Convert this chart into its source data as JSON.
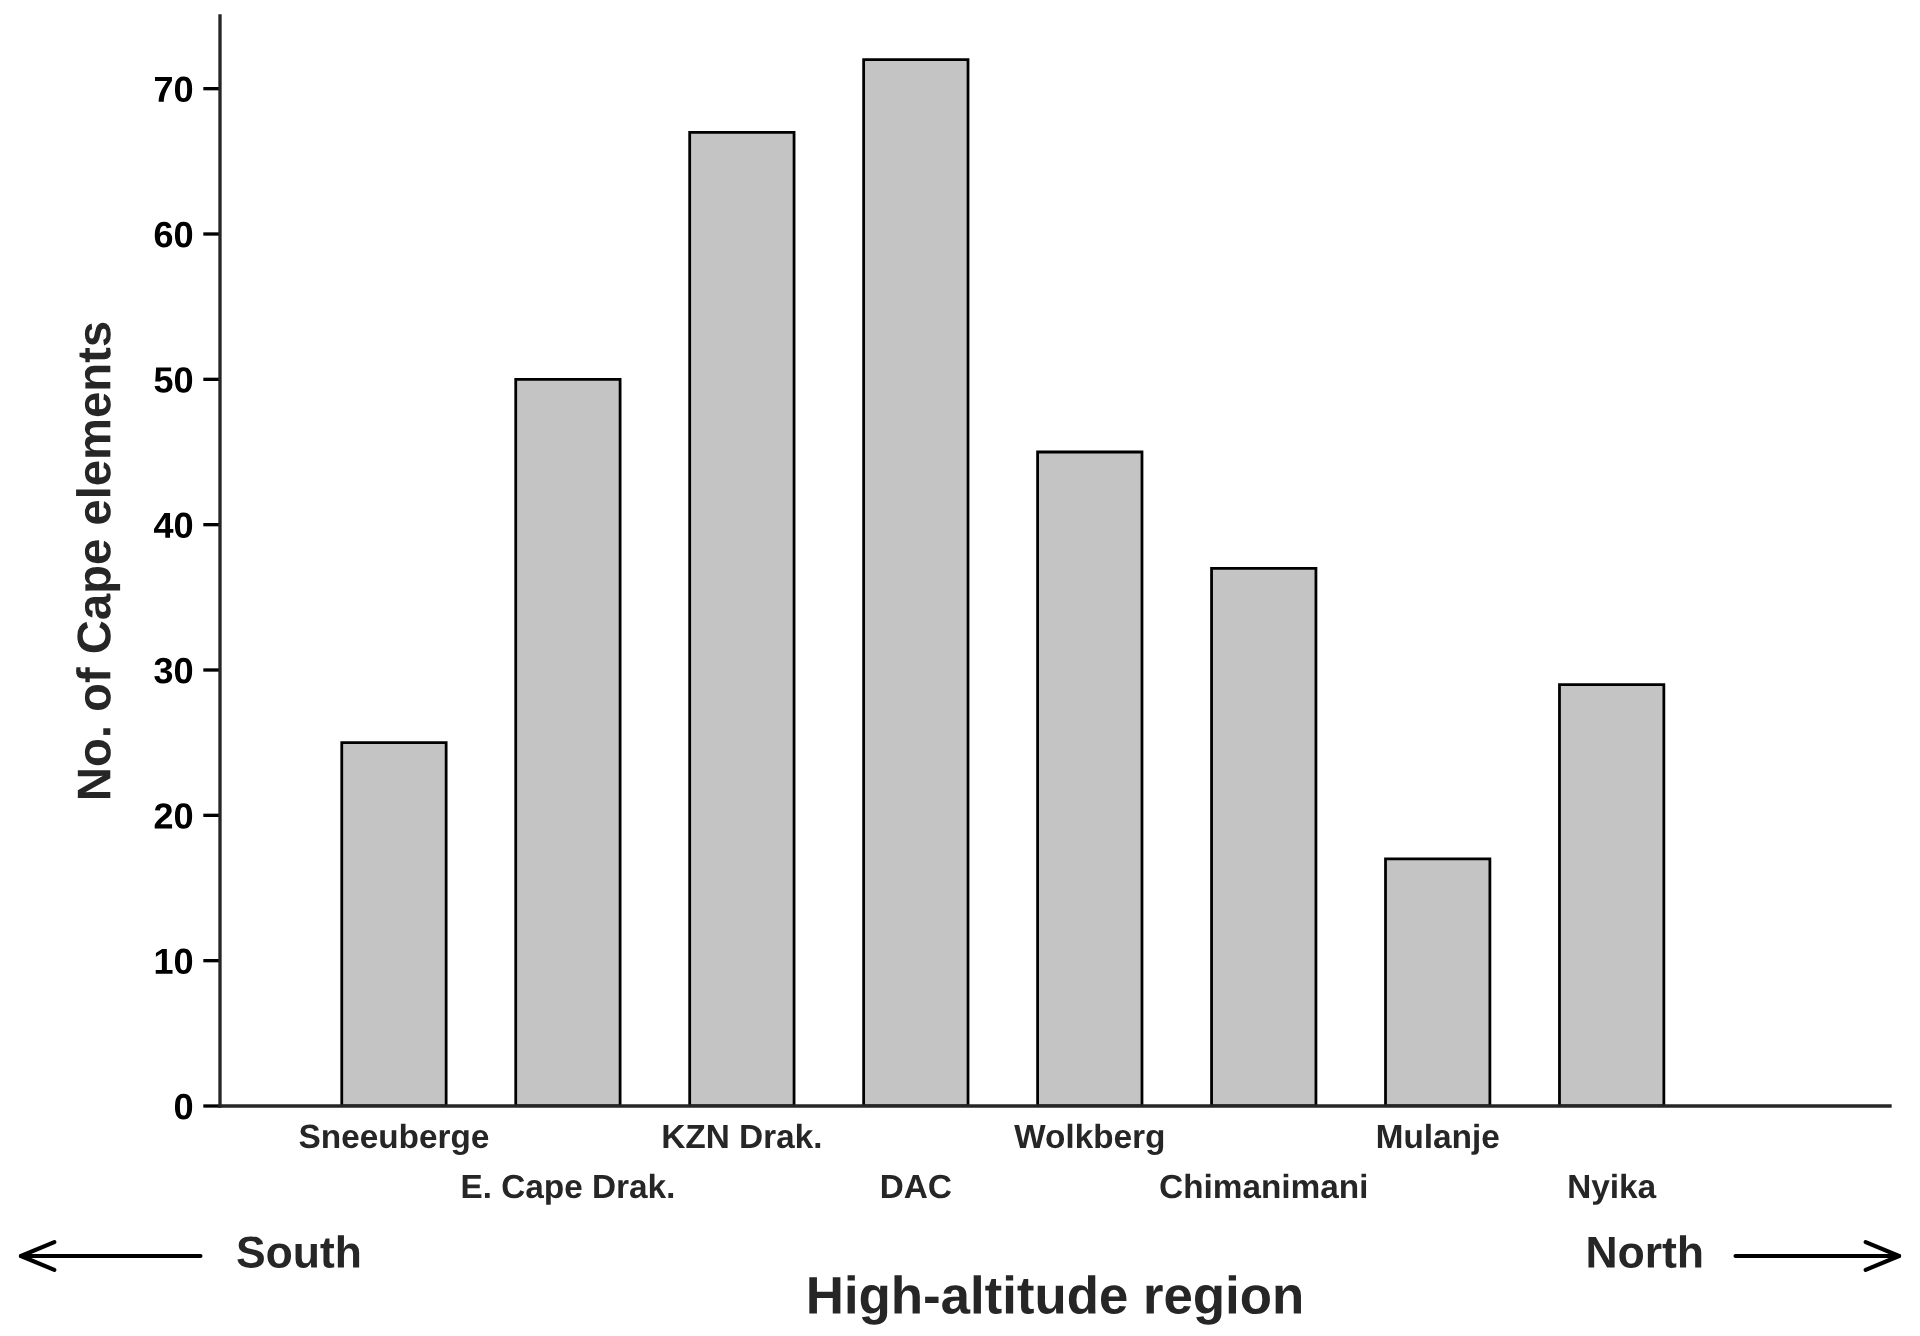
{
  "chart_data": {
    "type": "bar",
    "xlabel": "High-altitude region",
    "ylabel": "No. of Cape elements",
    "categories": [
      "Sneeuberge",
      "E. Cape Drak.",
      "KZN Drak.",
      "DAC",
      "Wolkberg",
      "Chimanimani",
      "Mulanje",
      "Nyika"
    ],
    "values": [
      25,
      50,
      67,
      72,
      45,
      37,
      17,
      29
    ],
    "color": "#c4c4c4",
    "ylim": [
      0,
      75
    ],
    "yticks": [
      0,
      10,
      20,
      30,
      40,
      50,
      60,
      70
    ],
    "grid": false,
    "legend": false,
    "annotations": [
      "South",
      "North"
    ]
  }
}
